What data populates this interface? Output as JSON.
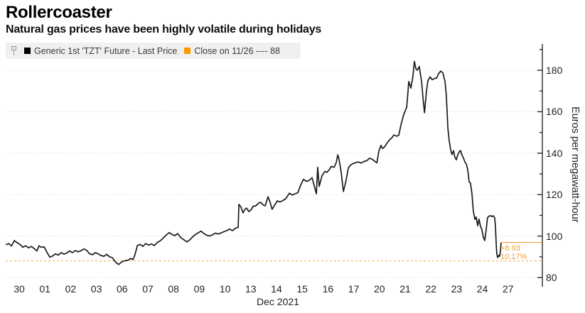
{
  "title": "Rollercoaster",
  "subtitle": "Natural gas prices have been highly volatile during holidays",
  "legend": {
    "series1": {
      "label": "Generic 1st 'TZT' Future - Last Price",
      "swatch_color": "#000000"
    },
    "series2": {
      "label": "Close on 11/26 ---- 88",
      "swatch_color": "#F79A00"
    }
  },
  "annotation": {
    "change": "+8.93",
    "percent": "10.17%",
    "last_price": 96.93
  },
  "colors": {
    "line": "#1b1b1b",
    "orange_swatch": "#F79A00",
    "orange_line": "#EFA036",
    "orange_dashed": "#F2BA66",
    "grid": "#dcdcdc",
    "axis": "#2a2a2a",
    "legend_bg": "#f0f0f0"
  },
  "y_axis": {
    "title": "Euros per megawatt-hour",
    "major_ticks": [
      80,
      100,
      120,
      140,
      160,
      180
    ],
    "minor_tick_step": 10,
    "min_tick": 80,
    "max_tick": 190
  },
  "x_axis": {
    "labels": [
      "30",
      "01",
      "02",
      "03",
      "06",
      "07",
      "08",
      "09",
      "10",
      "13",
      "14",
      "15",
      "16",
      "17",
      "20",
      "21",
      "22",
      "23",
      "24",
      "27"
    ],
    "group_label": "Dec 2021"
  },
  "chart_data": {
    "type": "line",
    "title": "Rollercoaster",
    "subtitle": "Natural gas prices have been highly volatile during holidays",
    "xlabel": "Dec 2021",
    "ylabel": "Euros per megawatt-hour",
    "ylim": [
      78,
      193
    ],
    "x_unit": "trading-day index relative to Nov 30 tick (labels are dates, Nov 30 - Dec 27, 2021)",
    "categories": [
      "30",
      "01",
      "02",
      "03",
      "06",
      "07",
      "08",
      "09",
      "10",
      "13",
      "14",
      "15",
      "16",
      "17",
      "20",
      "21",
      "22",
      "23",
      "24",
      "27"
    ],
    "reference_line": {
      "label": "Close on 11/26",
      "value": 88
    },
    "last_price": 96.93,
    "last_price_change": "+8.93",
    "last_price_change_pct": "10.17%",
    "series": [
      {
        "name": "Generic 1st 'TZT' Future - Last Price",
        "points": [
          [
            -0.52,
            95.8
          ],
          [
            -0.41,
            96.4
          ],
          [
            -0.3,
            95.2
          ],
          [
            -0.19,
            97.8
          ],
          [
            -0.08,
            96.8
          ],
          [
            0.03,
            96.0
          ],
          [
            0.14,
            94.6
          ],
          [
            0.25,
            95.3
          ],
          [
            0.36,
            94.3
          ],
          [
            0.47,
            95.0
          ],
          [
            0.58,
            94.0
          ],
          [
            0.69,
            92.8
          ],
          [
            0.77,
            95.3
          ],
          [
            0.86,
            94.6
          ],
          [
            0.97,
            94.8
          ],
          [
            1.08,
            92.2
          ],
          [
            1.19,
            89.8
          ],
          [
            1.3,
            90.4
          ],
          [
            1.41,
            91.4
          ],
          [
            1.52,
            90.8
          ],
          [
            1.63,
            92.0
          ],
          [
            1.74,
            91.3
          ],
          [
            1.85,
            91.8
          ],
          [
            1.96,
            92.8
          ],
          [
            2.07,
            92.0
          ],
          [
            2.18,
            93.0
          ],
          [
            2.29,
            92.4
          ],
          [
            2.4,
            92.9
          ],
          [
            2.51,
            93.8
          ],
          [
            2.62,
            93.2
          ],
          [
            2.73,
            91.5
          ],
          [
            2.85,
            91.0
          ],
          [
            2.96,
            92.0
          ],
          [
            3.07,
            91.4
          ],
          [
            3.18,
            90.6
          ],
          [
            3.29,
            90.2
          ],
          [
            3.4,
            91.2
          ],
          [
            3.51,
            90.0
          ],
          [
            3.62,
            89.6
          ],
          [
            3.7,
            88.2
          ],
          [
            3.78,
            87.0
          ],
          [
            3.87,
            86.3
          ],
          [
            3.95,
            87.2
          ],
          [
            4.03,
            87.8
          ],
          [
            4.12,
            88.1
          ],
          [
            4.23,
            88.4
          ],
          [
            4.34,
            89.2
          ],
          [
            4.42,
            88.6
          ],
          [
            4.5,
            91.0
          ],
          [
            4.59,
            95.4
          ],
          [
            4.7,
            96.0
          ],
          [
            4.81,
            95.0
          ],
          [
            4.92,
            96.4
          ],
          [
            5.03,
            95.6
          ],
          [
            5.14,
            96.2
          ],
          [
            5.25,
            95.4
          ],
          [
            5.36,
            96.8
          ],
          [
            5.47,
            97.6
          ],
          [
            5.58,
            98.8
          ],
          [
            5.69,
            100.2
          ],
          [
            5.83,
            101.7
          ],
          [
            5.94,
            100.8
          ],
          [
            6.05,
            100.2
          ],
          [
            6.16,
            101.2
          ],
          [
            6.27,
            99.4
          ],
          [
            6.38,
            98.4
          ],
          [
            6.52,
            97.2
          ],
          [
            6.63,
            98.2
          ],
          [
            6.74,
            99.6
          ],
          [
            6.85,
            100.8
          ],
          [
            6.96,
            101.6
          ],
          [
            7.07,
            102.4
          ],
          [
            7.18,
            101.2
          ],
          [
            7.29,
            100.4
          ],
          [
            7.4,
            100.0
          ],
          [
            7.51,
            100.6
          ],
          [
            7.62,
            101.4
          ],
          [
            7.73,
            101.0
          ],
          [
            7.85,
            101.5
          ],
          [
            7.96,
            102.2
          ],
          [
            8.07,
            102.6
          ],
          [
            8.18,
            103.4
          ],
          [
            8.29,
            102.6
          ],
          [
            8.37,
            103.5
          ],
          [
            8.45,
            104.0
          ],
          [
            8.51,
            104.2
          ],
          [
            8.54,
            115.3
          ],
          [
            8.62,
            114.0
          ],
          [
            8.7,
            111.2
          ],
          [
            8.78,
            113.0
          ],
          [
            8.84,
            113.5
          ],
          [
            8.92,
            111.8
          ],
          [
            9.01,
            112.6
          ],
          [
            9.09,
            114.4
          ],
          [
            9.2,
            114.6
          ],
          [
            9.31,
            116.0
          ],
          [
            9.39,
            116.3
          ],
          [
            9.48,
            115.0
          ],
          [
            9.56,
            114.6
          ],
          [
            9.67,
            119.0
          ],
          [
            9.75,
            116.3
          ],
          [
            9.83,
            112.9
          ],
          [
            9.92,
            114.8
          ],
          [
            10.03,
            117.0
          ],
          [
            10.14,
            116.4
          ],
          [
            10.25,
            117.2
          ],
          [
            10.36,
            118.0
          ],
          [
            10.5,
            120.7
          ],
          [
            10.61,
            119.8
          ],
          [
            10.72,
            120.4
          ],
          [
            10.83,
            120.9
          ],
          [
            10.94,
            124.6
          ],
          [
            11.05,
            127.4
          ],
          [
            11.16,
            126.4
          ],
          [
            11.27,
            126.8
          ],
          [
            11.38,
            128.2
          ],
          [
            11.49,
            123.2
          ],
          [
            11.55,
            120.4
          ],
          [
            11.6,
            133.2
          ],
          [
            11.66,
            124.0
          ],
          [
            11.77,
            129.2
          ],
          [
            11.88,
            131.2
          ],
          [
            11.96,
            130.8
          ],
          [
            12.04,
            131.8
          ],
          [
            12.13,
            133.6
          ],
          [
            12.24,
            133.2
          ],
          [
            12.32,
            135.4
          ],
          [
            12.38,
            139.2
          ],
          [
            12.43,
            137.0
          ],
          [
            12.51,
            131.0
          ],
          [
            12.6,
            121.5
          ],
          [
            12.71,
            127.2
          ],
          [
            12.79,
            132.8
          ],
          [
            12.87,
            134.2
          ],
          [
            12.98,
            135.0
          ],
          [
            13.07,
            135.4
          ],
          [
            13.18,
            135.8
          ],
          [
            13.29,
            135.2
          ],
          [
            13.4,
            136.0
          ],
          [
            13.51,
            136.4
          ],
          [
            13.62,
            137.6
          ],
          [
            13.73,
            137.0
          ],
          [
            13.81,
            136.2
          ],
          [
            13.9,
            135.3
          ],
          [
            13.98,
            141.2
          ],
          [
            14.06,
            143.8
          ],
          [
            14.12,
            142.2
          ],
          [
            14.2,
            143.0
          ],
          [
            14.28,
            144.6
          ],
          [
            14.39,
            146.4
          ],
          [
            14.48,
            147.4
          ],
          [
            14.56,
            148.8
          ],
          [
            14.67,
            148.2
          ],
          [
            14.75,
            148.6
          ],
          [
            14.83,
            153.2
          ],
          [
            14.92,
            157.6
          ],
          [
            15.0,
            160.4
          ],
          [
            15.06,
            162.2
          ],
          [
            15.14,
            174.6
          ],
          [
            15.22,
            171.4
          ],
          [
            15.3,
            177.0
          ],
          [
            15.36,
            184.3
          ],
          [
            15.41,
            181.0
          ],
          [
            15.47,
            180.0
          ],
          [
            15.55,
            181.8
          ],
          [
            15.64,
            174.2
          ],
          [
            15.69,
            167.0
          ],
          [
            15.75,
            159.5
          ],
          [
            15.83,
            170.0
          ],
          [
            15.88,
            174.8
          ],
          [
            15.97,
            176.8
          ],
          [
            16.05,
            175.4
          ],
          [
            16.13,
            176.0
          ],
          [
            16.22,
            176.2
          ],
          [
            16.3,
            178.4
          ],
          [
            16.38,
            179.6
          ],
          [
            16.46,
            178.8
          ],
          [
            16.55,
            174.5
          ],
          [
            16.6,
            168.0
          ],
          [
            16.63,
            160.0
          ],
          [
            16.66,
            152.0
          ],
          [
            16.71,
            146.0
          ],
          [
            16.77,
            141.5
          ],
          [
            16.82,
            139.3
          ],
          [
            16.88,
            141.2
          ],
          [
            16.93,
            138.0
          ],
          [
            16.99,
            136.8
          ],
          [
            17.04,
            139.0
          ],
          [
            17.1,
            140.6
          ],
          [
            17.15,
            141.3
          ],
          [
            17.21,
            139.0
          ],
          [
            17.27,
            137.5
          ],
          [
            17.32,
            135.8
          ],
          [
            17.38,
            134.6
          ],
          [
            17.43,
            132.0
          ],
          [
            17.49,
            126.0
          ],
          [
            17.54,
            125.6
          ],
          [
            17.6,
            120.0
          ],
          [
            17.65,
            112.0
          ],
          [
            17.71,
            108.0
          ],
          [
            17.76,
            109.2
          ],
          [
            17.82,
            105.0
          ],
          [
            17.87,
            108.2
          ],
          [
            17.93,
            104.5
          ],
          [
            17.98,
            103.2
          ],
          [
            18.04,
            99.5
          ],
          [
            18.09,
            97.8
          ],
          [
            18.15,
            103.0
          ],
          [
            18.2,
            108.8
          ],
          [
            18.26,
            109.6
          ],
          [
            18.31,
            109.9
          ],
          [
            18.37,
            109.4
          ],
          [
            18.42,
            109.8
          ],
          [
            18.48,
            108.8
          ],
          [
            18.51,
            104.0
          ],
          [
            18.54,
            96.0
          ],
          [
            18.56,
            91.5
          ],
          [
            18.59,
            89.6
          ],
          [
            18.65,
            90.8
          ],
          [
            18.67,
            90.2
          ],
          [
            18.7,
            92.5
          ],
          [
            18.73,
            96.93
          ]
        ]
      }
    ]
  }
}
